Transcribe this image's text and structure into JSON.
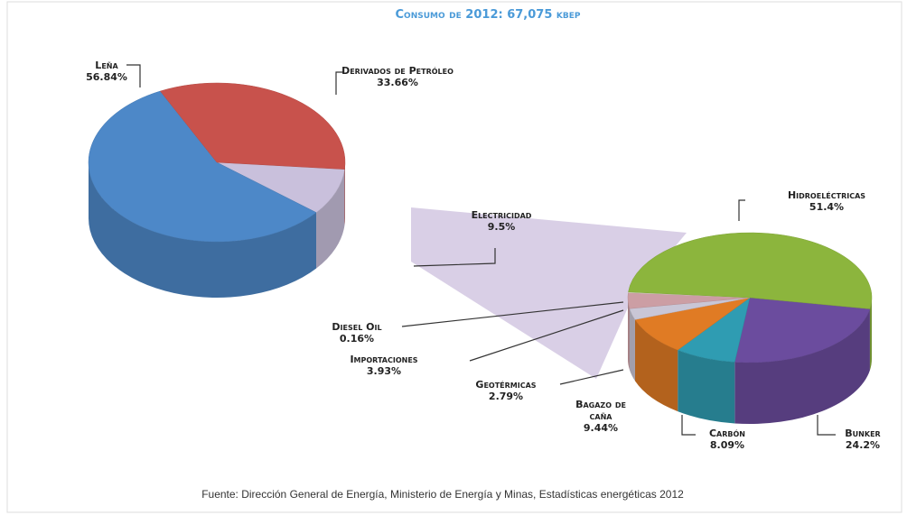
{
  "chart_data": [
    {
      "type": "pie",
      "title": "Consumo de 2012: 67,075 kbep",
      "categories": [
        "Electricidad",
        "Leña",
        "Derivados de Petróleo"
      ],
      "values": [
        9.5,
        56.84,
        33.66
      ],
      "value_labels": [
        "9.5%",
        "56.84%",
        "33.66%"
      ],
      "colors": [
        "#c9c0dc",
        "#4d88c8",
        "#c8524c"
      ],
      "source": "Fuente: Dirección General de Energía, Ministerio de Energía y Minas, Estadísticas energéticas 2012"
    },
    {
      "type": "pie",
      "categories": [
        "Bunker",
        "Carbón",
        "Bagazo de caña",
        "Geotérmicas",
        "Importaciones",
        "Diesel Oil",
        "Hidroeléctricas"
      ],
      "values": [
        24.2,
        8.09,
        9.44,
        2.79,
        3.93,
        0.16,
        51.4
      ],
      "value_labels": [
        "24.2%",
        "8.09%",
        "9.44%",
        "2.79%",
        "3.93%",
        "0.16%",
        "51.4%"
      ],
      "colors": [
        "#6b4c9e",
        "#2f9cb2",
        "#e07b24",
        "#c9c6d6",
        "#cc9ea4",
        "#e4e3d2",
        "#8cb53d"
      ]
    }
  ]
}
